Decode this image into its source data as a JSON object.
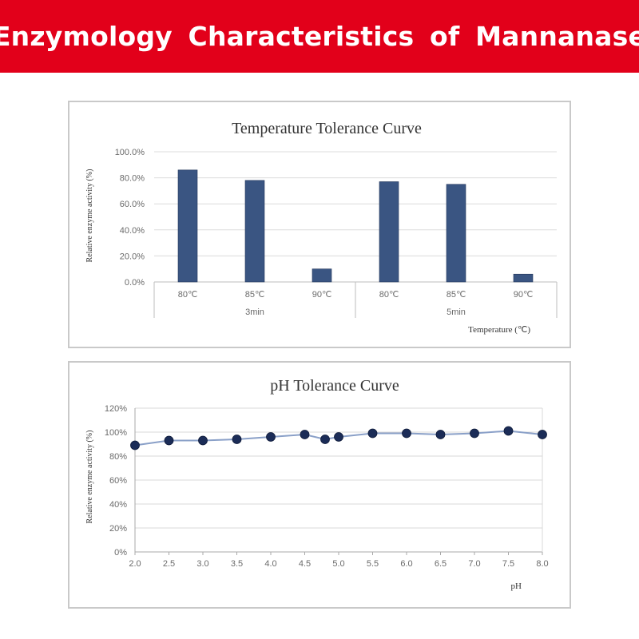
{
  "header": {
    "title": "Enzymology Characteristics of Mannanase",
    "background_color": "#e2001a",
    "text_color": "#ffffff"
  },
  "chart_data": [
    {
      "type": "bar",
      "title": "Temperature Tolerance Curve",
      "ylabel": "Relative enzyme activity (%)",
      "xlabel": "Temperature (℃)",
      "categories": [
        "80℃",
        "85℃",
        "90℃",
        "80℃",
        "85℃",
        "90℃"
      ],
      "groups": [
        {
          "label": "3min",
          "categories": [
            "80℃",
            "85℃",
            "90℃"
          ]
        },
        {
          "label": "5min",
          "categories": [
            "80℃",
            "85℃",
            "90℃"
          ]
        }
      ],
      "values": [
        86,
        78,
        10,
        77,
        75,
        6
      ],
      "ylim": [
        0,
        100
      ],
      "yticks": [
        0,
        20,
        40,
        60,
        80,
        100
      ],
      "ytick_labels": [
        "0.0%",
        "20.0%",
        "40.0%",
        "60.0%",
        "80.0%",
        "100.0%"
      ],
      "grid": true,
      "legend": false,
      "bar_color": "#3a5582"
    },
    {
      "type": "line",
      "title": "pH Tolerance Curve",
      "ylabel": "Relative enzyme activity (%)",
      "xlabel": "pH",
      "x": [
        2.0,
        2.5,
        3.0,
        3.5,
        4.0,
        4.5,
        4.8,
        5.0,
        5.5,
        6.0,
        6.5,
        7.0,
        7.5,
        8.0
      ],
      "y": [
        89,
        93,
        93,
        94,
        96,
        98,
        94,
        96,
        99,
        99,
        98,
        99,
        101,
        98
      ],
      "xlim": [
        2.0,
        8.0
      ],
      "xticks": [
        2.0,
        2.5,
        3.0,
        3.5,
        4.0,
        4.5,
        5.0,
        5.5,
        6.0,
        6.5,
        7.0,
        7.5,
        8.0
      ],
      "xtick_labels": [
        "2.0",
        "2.5",
        "3.0",
        "3.5",
        "4.0",
        "4.5",
        "5.0",
        "5.5",
        "6.0",
        "6.5",
        "7.0",
        "7.5",
        "8.0"
      ],
      "ylim": [
        0,
        120
      ],
      "yticks": [
        0,
        20,
        40,
        60,
        80,
        100,
        120
      ],
      "ytick_labels": [
        "0%",
        "20%",
        "40%",
        "60%",
        "80%",
        "100%",
        "120%"
      ],
      "grid": true,
      "legend": false,
      "line_color": "#8aa0c8",
      "marker_color": "#1b2c57"
    }
  ]
}
